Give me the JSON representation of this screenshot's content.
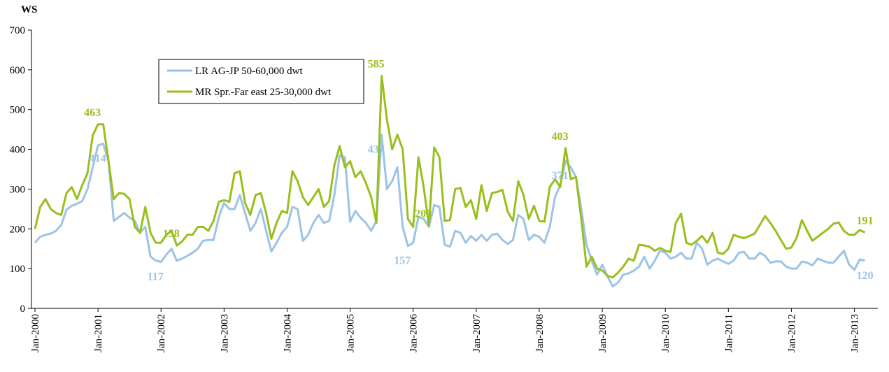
{
  "chart_data": {
    "type": "line",
    "y_label": "WS",
    "categories": [
      "Jan-2000",
      null,
      null,
      null,
      null,
      null,
      null,
      null,
      null,
      null,
      null,
      null,
      "Jan-2001",
      null,
      null,
      null,
      null,
      null,
      null,
      null,
      null,
      null,
      null,
      null,
      "Jan-2002",
      null,
      null,
      null,
      null,
      null,
      null,
      null,
      null,
      null,
      null,
      null,
      "Jan-2003",
      null,
      null,
      null,
      null,
      null,
      null,
      null,
      null,
      null,
      null,
      null,
      "Jan-2004",
      null,
      null,
      null,
      null,
      null,
      null,
      null,
      null,
      null,
      null,
      null,
      "Jan-2005",
      null,
      null,
      null,
      null,
      null,
      null,
      null,
      null,
      null,
      null,
      null,
      "Jan-2006",
      null,
      null,
      null,
      null,
      null,
      null,
      null,
      null,
      null,
      null,
      null,
      "Jan-2007",
      null,
      null,
      null,
      null,
      null,
      null,
      null,
      null,
      null,
      null,
      null,
      "Jan-2008",
      null,
      null,
      null,
      null,
      null,
      null,
      null,
      null,
      null,
      null,
      null,
      "Jan-2009",
      null,
      null,
      null,
      null,
      null,
      null,
      null,
      null,
      null,
      null,
      null,
      "Jan-2010",
      null,
      null,
      null,
      null,
      null,
      null,
      null,
      null,
      null,
      null,
      null,
      "Jan-2011",
      null,
      null,
      null,
      null,
      null,
      null,
      null,
      null,
      null,
      null,
      null,
      "Jan-2012",
      null,
      null,
      null,
      null,
      null,
      null,
      null,
      null,
      null,
      null,
      null,
      "Jan-2013",
      null,
      null
    ],
    "series": [
      {
        "name": "LR AG-JP 50-60,000 dwt",
        "color": "#9dc3e6",
        "values": [
          165,
          180,
          185,
          188,
          195,
          210,
          248,
          258,
          263,
          270,
          300,
          355,
          410,
          414,
          370,
          220,
          230,
          240,
          228,
          220,
          190,
          205,
          130,
          120,
          117,
          135,
          150,
          120,
          125,
          132,
          140,
          150,
          170,
          172,
          172,
          230,
          265,
          250,
          250,
          285,
          240,
          195,
          215,
          250,
          195,
          143,
          165,
          190,
          205,
          255,
          250,
          170,
          185,
          215,
          235,
          215,
          220,
          285,
          385,
          380,
          218,
          245,
          228,
          215,
          195,
          220,
          437,
          300,
          320,
          355,
          205,
          157,
          165,
          230,
          225,
          205,
          260,
          255,
          160,
          155,
          195,
          190,
          165,
          182,
          170,
          185,
          170,
          185,
          188,
          172,
          162,
          172,
          235,
          225,
          172,
          185,
          180,
          165,
          205,
          280,
          310,
          371,
          355,
          330,
          250,
          160,
          120,
          85,
          110,
          80,
          55,
          65,
          85,
          88,
          95,
          105,
          130,
          100,
          120,
          145,
          140,
          125,
          130,
          140,
          125,
          125,
          165,
          150,
          110,
          120,
          125,
          118,
          112,
          120,
          140,
          142,
          125,
          125,
          140,
          132,
          115,
          118,
          118,
          105,
          100,
          100,
          118,
          115,
          108,
          125,
          120,
          115,
          115,
          130,
          145,
          110,
          97,
          123,
          120
        ]
      },
      {
        "name": "MR Spr.-Far east 25-30,000 dwt",
        "color": "#99bf1e",
        "values": [
          200,
          255,
          275,
          250,
          240,
          235,
          290,
          305,
          275,
          310,
          340,
          435,
          463,
          463,
          370,
          275,
          290,
          288,
          275,
          205,
          190,
          255,
          190,
          165,
          165,
          185,
          195,
          158,
          168,
          185,
          185,
          205,
          205,
          195,
          220,
          268,
          272,
          268,
          340,
          345,
          265,
          235,
          285,
          290,
          240,
          175,
          215,
          245,
          240,
          345,
          320,
          280,
          260,
          280,
          300,
          255,
          270,
          360,
          408,
          355,
          370,
          330,
          345,
          315,
          280,
          215,
          585,
          475,
          400,
          437,
          400,
          225,
          205,
          380,
          305,
          208,
          405,
          380,
          220,
          222,
          300,
          303,
          255,
          272,
          225,
          310,
          245,
          290,
          293,
          298,
          243,
          220,
          320,
          285,
          225,
          258,
          220,
          218,
          305,
          325,
          305,
          403,
          325,
          330,
          225,
          105,
          130,
          100,
          95,
          82,
          78,
          90,
          105,
          125,
          120,
          160,
          158,
          155,
          145,
          152,
          145,
          142,
          215,
          238,
          165,
          160,
          170,
          182,
          165,
          190,
          140,
          137,
          150,
          185,
          180,
          177,
          182,
          188,
          210,
          232,
          215,
          195,
          172,
          150,
          153,
          178,
          222,
          195,
          170,
          180,
          190,
          200,
          213,
          216,
          195,
          185,
          185,
          197,
          191
        ]
      }
    ],
    "annotations": [
      {
        "text": "463",
        "series": 1,
        "index": 12
      },
      {
        "text": "414",
        "series": 0,
        "index": 13
      },
      {
        "text": "158",
        "series": 1,
        "index": 27
      },
      {
        "text": "117",
        "series": 0,
        "index": 24
      },
      {
        "text": "585",
        "series": 1,
        "index": 66
      },
      {
        "text": "437",
        "series": 0,
        "index": 66
      },
      {
        "text": "208",
        "series": 1,
        "index": 75
      },
      {
        "text": "157",
        "series": 0,
        "index": 71
      },
      {
        "text": "371",
        "series": 0,
        "index": 101
      },
      {
        "text": "403",
        "series": 1,
        "index": 101
      },
      {
        "text": "191",
        "series": 1,
        "index": 158
      },
      {
        "text": "120",
        "series": 0,
        "index": 158
      }
    ],
    "ylim": [
      0,
      700
    ],
    "yticks": [
      0,
      100,
      200,
      300,
      400,
      500,
      600,
      700
    ],
    "grid": false,
    "legend": "upper-left"
  }
}
